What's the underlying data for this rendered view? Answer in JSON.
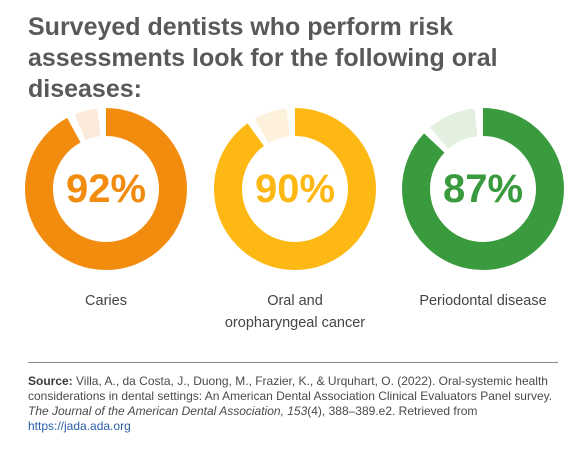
{
  "title": "Surveyed dentists who perform risk assessments look for the following oral diseases:",
  "chart_data": [
    {
      "type": "pie",
      "category": "Caries",
      "value": 92,
      "label": "92%",
      "color": "#F28C0F",
      "track_color": "#FCEBDD"
    },
    {
      "type": "pie",
      "category": "Oral and oropharyngeal cancer",
      "value": 90,
      "label": "90%",
      "color": "#FDB813",
      "track_color": "#FDF1DC"
    },
    {
      "type": "pie",
      "category": "Periodontal disease",
      "value": 87,
      "label": "87%",
      "color": "#3A9A3E",
      "track_color": "#E3F0E0"
    }
  ],
  "labels": {
    "caries": "Caries",
    "cancer_line1": "Oral and",
    "cancer_line2": "oropharyngeal cancer",
    "periodontal": "Periodontal disease"
  },
  "source": {
    "label": "Source:",
    "text_1": " Villa, A., da Costa, J., Duong, M., Frazier, K., & Urquhart, O. (2022). Oral-systemic health considerations in dental settings: An American Dental Association Clinical Evaluators Panel survey. ",
    "journal": "The Journal of the American Dental Association, 153",
    "text_2": "(4), 388–389.e2. Retrieved from ",
    "link": "https://jada.ada.org"
  }
}
